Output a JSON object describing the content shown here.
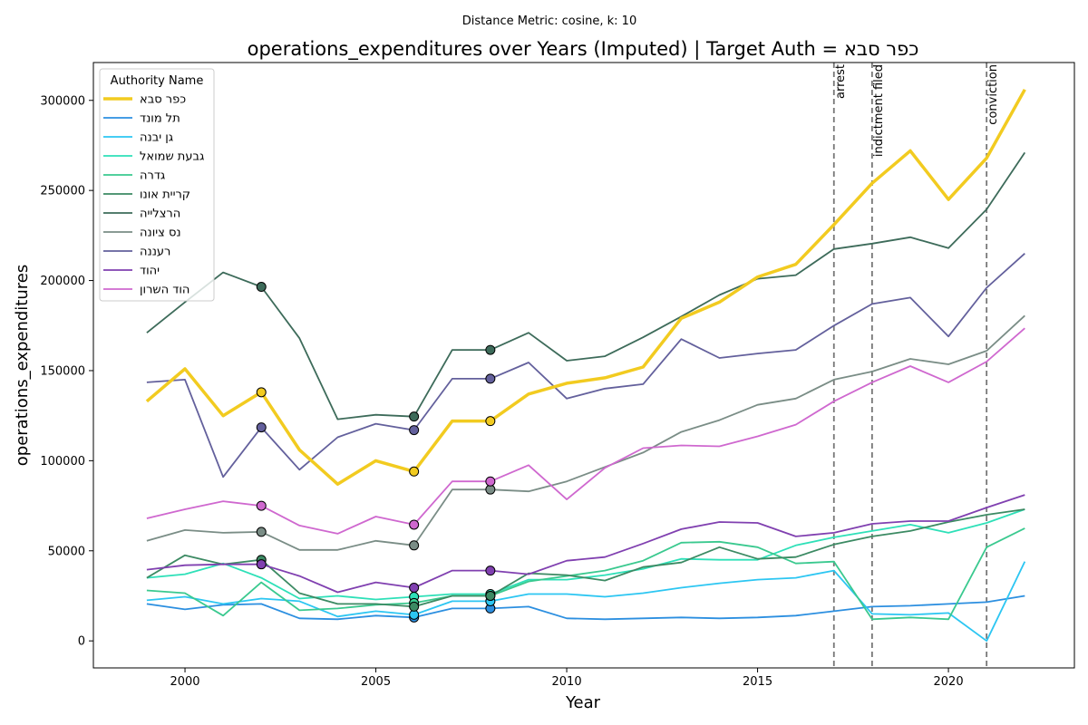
{
  "suptitle": "Distance Metric: cosine, k: 10",
  "chart_data": {
    "type": "line",
    "title": "operations_expenditures over Years (Imputed) | Target Auth = כפר סבא",
    "xlabel": "Year",
    "ylabel": "operations_expenditures",
    "xlim": [
      1997.6,
      2023.3
    ],
    "ylim": [
      -15000,
      321000
    ],
    "xticks": [
      2000,
      2005,
      2010,
      2015,
      2020
    ],
    "yticks": [
      0,
      50000,
      100000,
      150000,
      200000,
      250000,
      300000
    ],
    "grid": false,
    "legend_title": "Authority Name",
    "legend_position": "upper-left",
    "x": [
      1999,
      2000,
      2001,
      2002,
      2003,
      2004,
      2005,
      2006,
      2007,
      2008,
      2009,
      2010,
      2011,
      2012,
      2013,
      2014,
      2015,
      2016,
      2017,
      2018,
      2019,
      2020,
      2021,
      2022
    ],
    "events": [
      {
        "label": "arrest",
        "x": 2017
      },
      {
        "label": "indictment filed",
        "x": 2018
      },
      {
        "label": "conviction",
        "x": 2021
      }
    ],
    "series": [
      {
        "name": "כפר סבא",
        "color": "#f2cb20",
        "width": 3.5,
        "target": true,
        "values": [
          133000,
          151000,
          125000,
          138000,
          106000,
          87000,
          100000,
          94000,
          122000,
          122000,
          137000,
          143000,
          146000,
          152000,
          179000,
          188000,
          202000,
          209000,
          231000,
          254000,
          272000,
          245000,
          268000,
          306000
        ],
        "imputed_x": [
          2002,
          2006,
          2008
        ]
      },
      {
        "name": "תל מונד",
        "color": "#2c8fe0",
        "width": 1.8,
        "values": [
          20500,
          17500,
          20000,
          20500,
          12500,
          12000,
          14000,
          13000,
          18000,
          18000,
          19000,
          12500,
          12000,
          12500,
          13000,
          12500,
          13000,
          14000,
          16500,
          19000,
          19500,
          20500,
          21500,
          25000
        ],
        "imputed_x": [
          2006,
          2008
        ]
      },
      {
        "name": "גן יבנה",
        "color": "#2cc6f2",
        "width": 1.8,
        "values": [
          22500,
          24500,
          20500,
          23500,
          22000,
          13500,
          16500,
          14500,
          22000,
          22000,
          26000,
          26000,
          24500,
          26500,
          29500,
          32000,
          34000,
          35000,
          39000,
          15000,
          14500,
          15500,
          0,
          44000
        ],
        "imputed_x": [
          2006,
          2008
        ]
      },
      {
        "name": "גבעת שמואל",
        "color": "#2ee0b8",
        "width": 1.8,
        "values": [
          35000,
          37000,
          43000,
          35000,
          23500,
          25000,
          23000,
          24500,
          26000,
          26000,
          34000,
          34000,
          36500,
          40000,
          45500,
          45000,
          45000,
          53000,
          57500,
          61000,
          64500,
          60000,
          65500,
          73000
        ],
        "imputed_x": [
          2006,
          2008
        ]
      },
      {
        "name": "גדרה",
        "color": "#3ac98f",
        "width": 1.8,
        "values": [
          28000,
          26500,
          14000,
          32500,
          17000,
          18000,
          20000,
          21000,
          25000,
          25000,
          33000,
          36000,
          39000,
          44500,
          54500,
          55000,
          52000,
          43000,
          44000,
          12000,
          13000,
          12000,
          52000,
          62500
        ],
        "imputed_x": [
          2006,
          2008
        ]
      },
      {
        "name": "קריית אונו",
        "color": "#3c8a63",
        "width": 1.8,
        "values": [
          35000,
          47500,
          42500,
          45000,
          26500,
          20500,
          20500,
          19000,
          25000,
          25000,
          37500,
          36500,
          33500,
          41000,
          43500,
          52000,
          45500,
          46500,
          53500,
          58000,
          61000,
          66000,
          70000,
          73000
        ],
        "imputed_x": [
          2002,
          2006,
          2008
        ]
      },
      {
        "name": "הרצלייה",
        "color": "#3d6b5a",
        "width": 1.8,
        "values": [
          171000,
          188000,
          204500,
          196500,
          168000,
          123000,
          125500,
          124500,
          161500,
          161500,
          171000,
          155500,
          158000,
          168500,
          180000,
          192000,
          201000,
          203000,
          217500,
          220500,
          224000,
          218000,
          239500,
          271000
        ],
        "imputed_x": [
          2002,
          2006,
          2008
        ]
      },
      {
        "name": "נס ציונה",
        "color": "#7a8d86",
        "width": 1.8,
        "values": [
          55500,
          61500,
          60000,
          60500,
          50500,
          50500,
          55500,
          53000,
          84000,
          84000,
          83000,
          88500,
          96500,
          104500,
          116000,
          122500,
          131000,
          134500,
          145000,
          149500,
          156500,
          153500,
          161000,
          180500
        ],
        "imputed_x": [
          2002,
          2006,
          2008
        ]
      },
      {
        "name": "רעננה",
        "color": "#63609c",
        "width": 1.8,
        "values": [
          143500,
          145000,
          91000,
          118500,
          95000,
          113000,
          120500,
          117000,
          145500,
          145500,
          154500,
          134500,
          140000,
          142500,
          167500,
          157000,
          159500,
          161500,
          175000,
          187000,
          190500,
          169000,
          196000,
          215000
        ],
        "imputed_x": [
          2002,
          2006,
          2008
        ]
      },
      {
        "name": "יהוד",
        "color": "#8040b0",
        "width": 1.8,
        "values": [
          39500,
          42000,
          42500,
          42500,
          36000,
          27000,
          32500,
          29500,
          39000,
          39000,
          37000,
          44500,
          46500,
          54000,
          62000,
          66000,
          65500,
          58000,
          60000,
          65000,
          66500,
          66500,
          74000,
          81000
        ],
        "imputed_x": [
          2002,
          2006,
          2008
        ]
      },
      {
        "name": "הוד השרון",
        "color": "#cf68cf",
        "width": 1.8,
        "values": [
          68000,
          73000,
          77500,
          75000,
          64000,
          59500,
          69000,
          64500,
          88500,
          88500,
          97500,
          78500,
          96000,
          107000,
          108500,
          108000,
          113500,
          120000,
          133000,
          143500,
          152500,
          143500,
          155000,
          173500
        ],
        "imputed_x": [
          2002,
          2006,
          2008
        ]
      }
    ]
  }
}
